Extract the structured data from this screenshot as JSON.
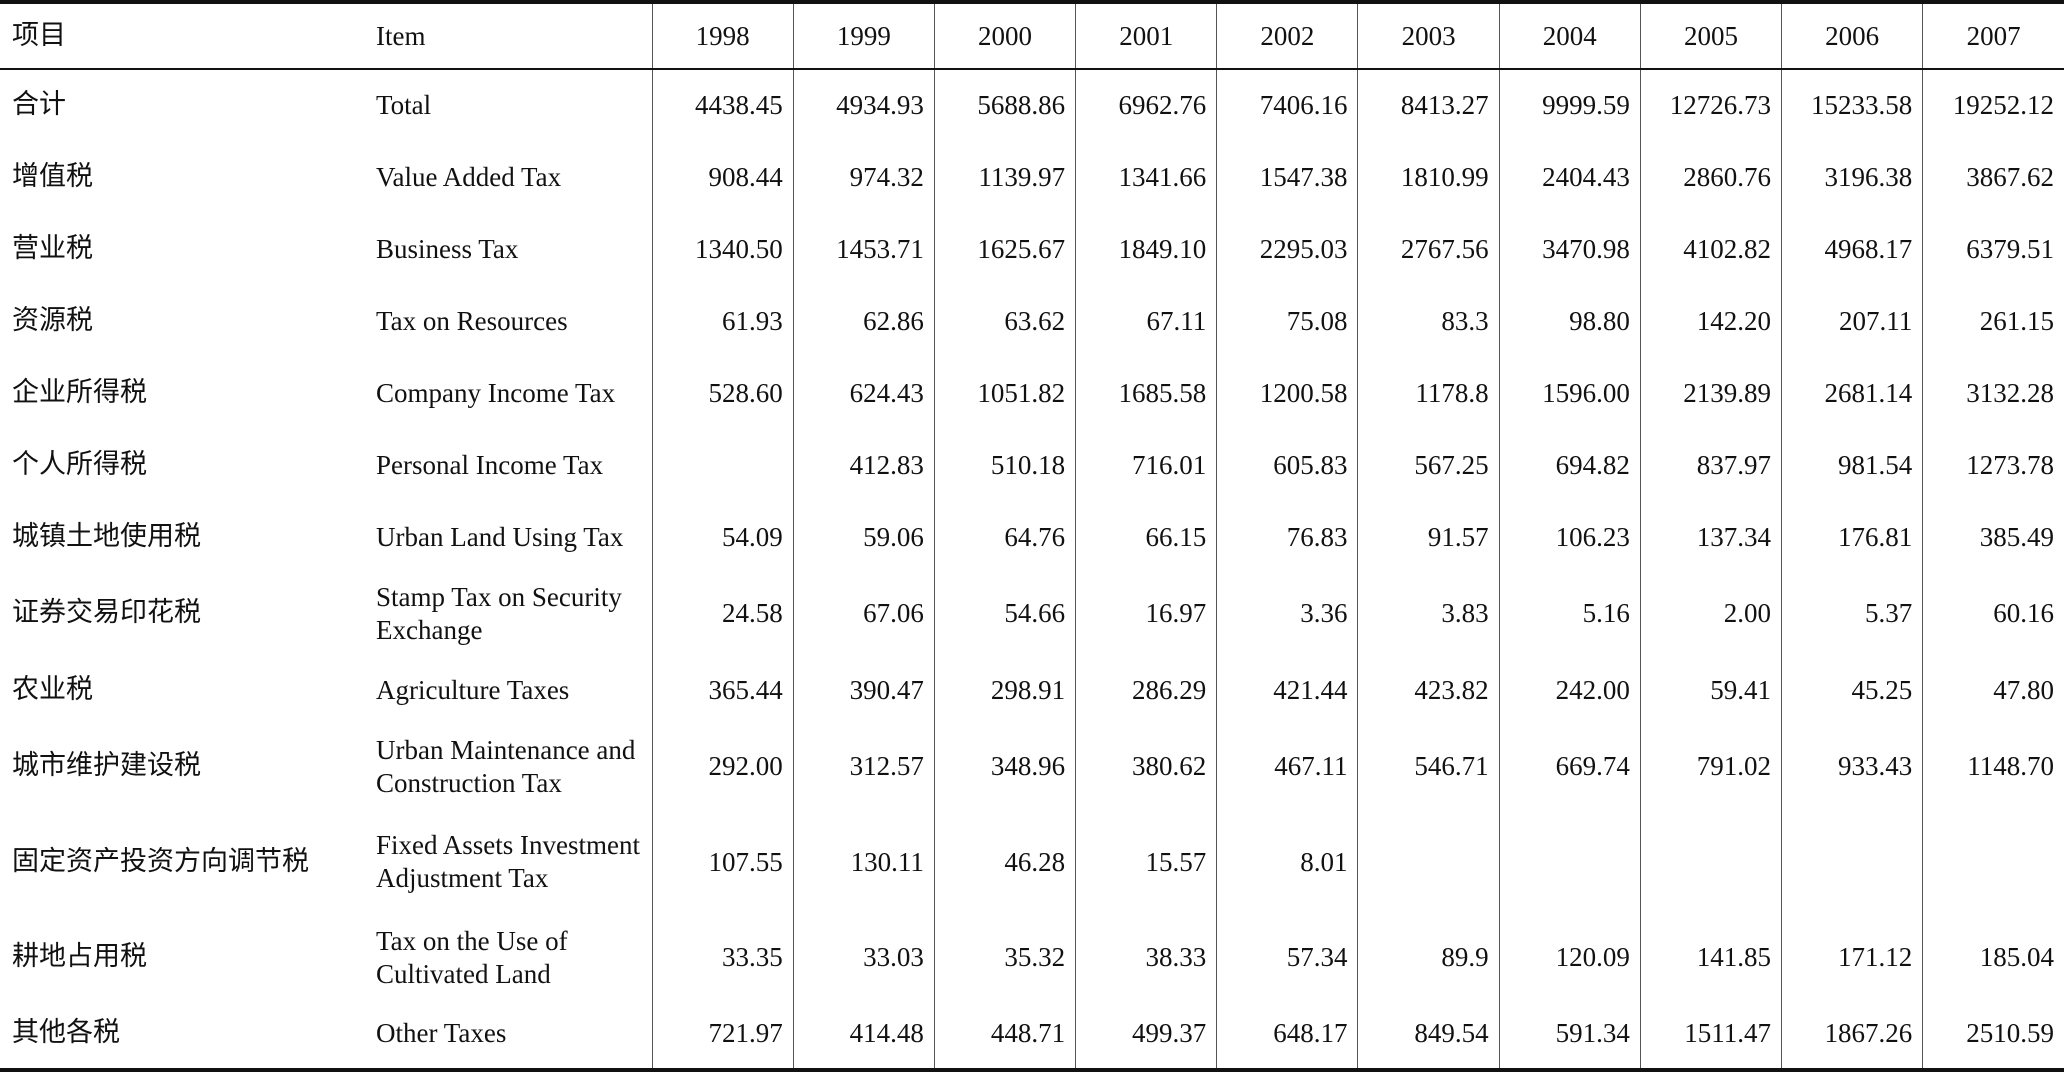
{
  "header": {
    "cn": "项目",
    "en": "Item",
    "years": [
      "1998",
      "1999",
      "2000",
      "2001",
      "2002",
      "2003",
      "2004",
      "2005",
      "2006",
      "2007"
    ]
  },
  "rows": [
    {
      "cn": "合计",
      "en": "Total",
      "values": [
        "4438.45",
        "4934.93",
        "5688.86",
        "6962.76",
        "7406.16",
        "8413.27",
        "9999.59",
        "12726.73",
        "15233.58",
        "19252.12"
      ]
    },
    {
      "cn": "增值税",
      "en": "Value Added Tax",
      "values": [
        "908.44",
        "974.32",
        "1139.97",
        "1341.66",
        "1547.38",
        "1810.99",
        "2404.43",
        "2860.76",
        "3196.38",
        "3867.62"
      ]
    },
    {
      "cn": "营业税",
      "en": "Business Tax",
      "values": [
        "1340.50",
        "1453.71",
        "1625.67",
        "1849.10",
        "2295.03",
        "2767.56",
        "3470.98",
        "4102.82",
        "4968.17",
        "6379.51"
      ]
    },
    {
      "cn": "资源税",
      "en": "Tax on Resources",
      "values": [
        "61.93",
        "62.86",
        "63.62",
        "67.11",
        "75.08",
        "83.3",
        "98.80",
        "142.20",
        "207.11",
        "261.15"
      ]
    },
    {
      "cn": "企业所得税",
      "en": "Company Income Tax",
      "values": [
        "528.60",
        "624.43",
        "1051.82",
        "1685.58",
        "1200.58",
        "1178.8",
        "1596.00",
        "2139.89",
        "2681.14",
        "3132.28"
      ]
    },
    {
      "cn": "个人所得税",
      "en": "Personal Income Tax",
      "values": [
        "",
        "412.83",
        "510.18",
        "716.01",
        "605.83",
        "567.25",
        "694.82",
        "837.97",
        "981.54",
        "1273.78"
      ]
    },
    {
      "cn": "城镇土地使用税",
      "en": "Urban Land Using Tax",
      "values": [
        "54.09",
        "59.06",
        "64.76",
        "66.15",
        "76.83",
        "91.57",
        "106.23",
        "137.34",
        "176.81",
        "385.49"
      ]
    },
    {
      "cn": "证券交易印花税",
      "en": "Stamp Tax on Security Exchange",
      "values": [
        "24.58",
        "67.06",
        "54.66",
        "16.97",
        "3.36",
        "3.83",
        "5.16",
        "2.00",
        "5.37",
        "60.16"
      ]
    },
    {
      "cn": "农业税",
      "en": "Agriculture Taxes",
      "values": [
        "365.44",
        "390.47",
        "298.91",
        "286.29",
        "421.44",
        "423.82",
        "242.00",
        "59.41",
        "45.25",
        "47.80"
      ]
    },
    {
      "cn": "城市维护建设税",
      "en": "Urban Maintenance and Construction Tax",
      "values": [
        "292.00",
        "312.57",
        "348.96",
        "380.62",
        "467.11",
        "546.71",
        "669.74",
        "791.02",
        "933.43",
        "1148.70"
      ]
    },
    {
      "cn": "固定资产投资方向调节税",
      "en": "Fixed Assets Investment Adjustment Tax",
      "values": [
        "107.55",
        "130.11",
        "46.28",
        "15.57",
        "8.01",
        "",
        "",
        "",
        "",
        ""
      ]
    },
    {
      "cn": "耕地占用税",
      "en": "Tax on the Use of Cultivated Land",
      "values": [
        "33.35",
        "33.03",
        "35.32",
        "38.33",
        "57.34",
        "89.9",
        "120.09",
        "141.85",
        "171.12",
        "185.04"
      ]
    },
    {
      "cn": "其他各税",
      "en": "Other Taxes",
      "values": [
        "721.97",
        "414.48",
        "448.71",
        "499.37",
        "648.17",
        "849.54",
        "591.34",
        "1511.47",
        "1867.26",
        "2510.59"
      ]
    }
  ]
}
